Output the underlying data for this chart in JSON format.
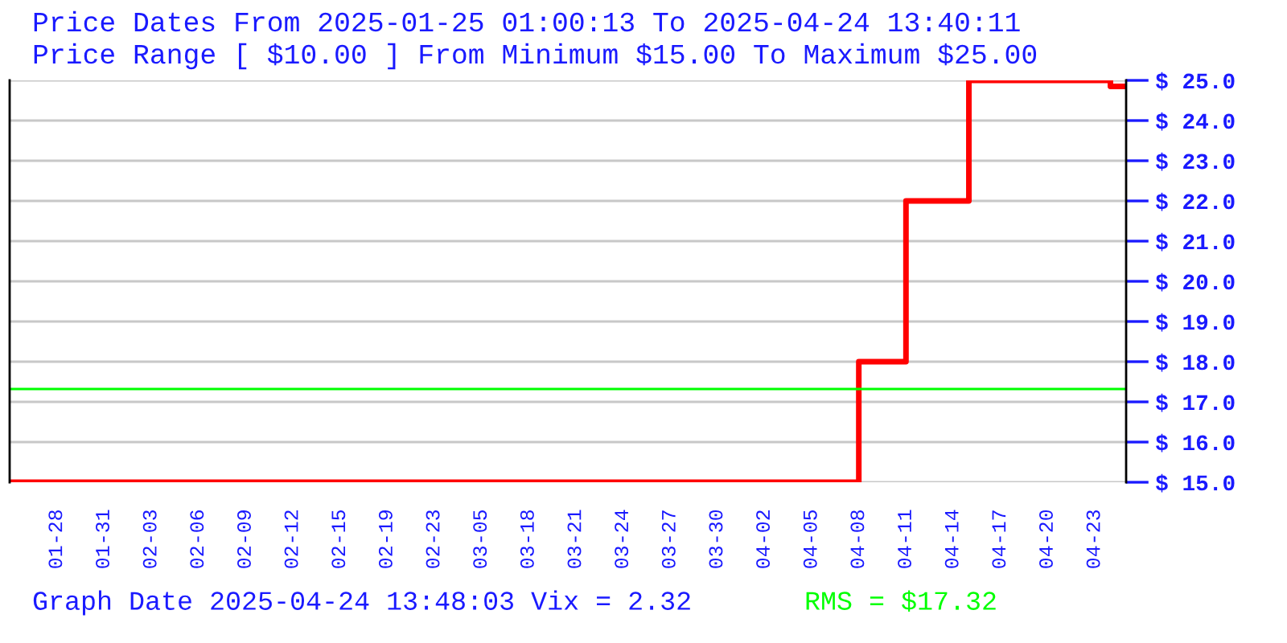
{
  "chart_data": {
    "type": "step",
    "title": "Price Dates From 2025-01-25 01:00:13 To 2025-04-24 13:40:11",
    "subtitle": "Price Range [ $10.00 ] From Minimum $15.00 To Maximum $25.00",
    "annotations": [
      "Graph Date 2025-04-24 13:48:03 Vix = 2.32"
    ],
    "categories": [
      null,
      null,
      null,
      "01-28",
      null,
      null,
      "01-31",
      null,
      null,
      "02-03",
      null,
      null,
      "02-06",
      null,
      null,
      "02-09",
      null,
      null,
      "02-12",
      null,
      null,
      "02-15",
      null,
      null,
      "02-19",
      null,
      null,
      "02-23",
      null,
      null,
      "03-05",
      null,
      null,
      "03-18",
      null,
      null,
      "03-21",
      null,
      null,
      "03-24",
      null,
      null,
      "03-27",
      null,
      null,
      "03-30",
      null,
      null,
      "04-02",
      null,
      null,
      "04-05",
      null,
      null,
      "04-08",
      null,
      null,
      "04-11",
      null,
      null,
      "04-14",
      null,
      null,
      "04-17",
      null,
      null,
      "04-20",
      null,
      null,
      "04-23",
      null,
      null
    ],
    "series": [
      {
        "color": "#ff0000",
        "values": [
          15,
          15,
          15,
          15,
          15,
          15,
          15,
          15,
          15,
          15,
          15,
          15,
          15,
          15,
          15,
          15,
          15,
          15,
          15,
          15,
          15,
          15,
          15,
          15,
          15,
          15,
          15,
          15,
          15,
          15,
          15,
          15,
          15,
          15,
          15,
          15,
          15,
          15,
          15,
          15,
          15,
          15,
          15,
          15,
          15,
          15,
          15,
          15,
          15,
          15,
          15,
          15,
          15,
          15,
          18,
          18,
          18,
          22,
          22,
          22,
          22,
          25,
          25,
          25,
          25,
          25,
          25,
          25,
          25,
          25,
          24.85,
          24.85
        ]
      }
    ],
    "ylim": [
      15,
      25
    ],
    "yticks": [
      {
        "value": 15,
        "label": "$ 15.0"
      },
      {
        "value": 16,
        "label": "$ 16.0"
      },
      {
        "value": 17,
        "label": "$ 17.0"
      },
      {
        "value": 18,
        "label": "$ 18.0"
      },
      {
        "value": 19,
        "label": "$ 19.0"
      },
      {
        "value": 20,
        "label": "$ 20.0"
      },
      {
        "value": 21,
        "label": "$ 21.0"
      },
      {
        "value": 22,
        "label": "$ 22.0"
      },
      {
        "value": 23,
        "label": "$ 23.0"
      },
      {
        "value": 24,
        "label": "$ 24.0"
      },
      {
        "value": 25,
        "label": "$ 25.0"
      }
    ],
    "ref_lines": [
      {
        "axis": "y",
        "value": 17.32,
        "label": "RMS = $17.32",
        "color": "#00ff00"
      }
    ],
    "grid": "y",
    "line_style": "solid",
    "legend": false
  }
}
